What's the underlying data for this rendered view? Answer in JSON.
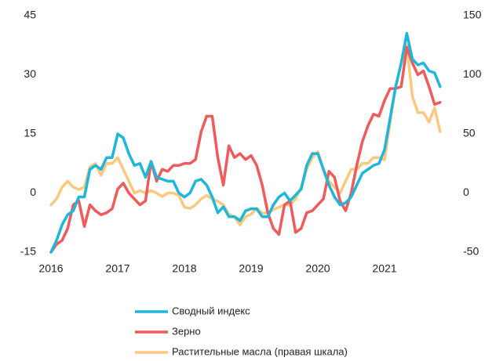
{
  "chart_data": {
    "type": "line",
    "categories": [
      "2016",
      null,
      null,
      null,
      null,
      null,
      null,
      null,
      null,
      null,
      null,
      null,
      "2017",
      null,
      null,
      null,
      null,
      null,
      null,
      null,
      null,
      null,
      null,
      null,
      "2018",
      null,
      null,
      null,
      null,
      null,
      null,
      null,
      null,
      null,
      null,
      null,
      "2019",
      null,
      null,
      null,
      null,
      null,
      null,
      null,
      null,
      null,
      null,
      null,
      "2020",
      null,
      null,
      null,
      null,
      null,
      null,
      null,
      null,
      null,
      null,
      null,
      "2021",
      null,
      null,
      null,
      null,
      null,
      null,
      null,
      null,
      null,
      null
    ],
    "ylim": [
      -15,
      45
    ],
    "yticks": [
      -15,
      0,
      15,
      30,
      45
    ],
    "y2lim": [
      -50,
      150
    ],
    "y2ticks": [
      -50,
      0,
      50,
      100,
      150
    ],
    "series": [
      {
        "name": "Сводный индекс",
        "color": "#1fb6d9",
        "values": [
          -15,
          -12,
          -8,
          -5.5,
          -4.5,
          -1,
          -1,
          6,
          7,
          6,
          9,
          9,
          15,
          14,
          10,
          7,
          7.5,
          4,
          8,
          4,
          3.5,
          3,
          3,
          0,
          -1,
          0,
          3,
          3.5,
          2,
          -1,
          -5,
          -3.5,
          -6,
          -6,
          -7,
          -4.5,
          -4,
          -4,
          -6,
          -6,
          -3,
          -1,
          0,
          -2,
          -0.5,
          1,
          7,
          10,
          10,
          6,
          2,
          -1,
          -3,
          -2.5,
          -1,
          2,
          5,
          6,
          7,
          7.5,
          11,
          19,
          27,
          33,
          40.5,
          34,
          32.5,
          33,
          31,
          30.5,
          27
        ]
      },
      {
        "name": "Зерно",
        "color": "#f05a5a",
        "values": [
          -15,
          -13,
          -12,
          -9,
          -3,
          -2,
          -8.5,
          -3,
          -4.5,
          -5.5,
          -5,
          -4,
          1,
          2.5,
          0,
          -1.5,
          -3,
          -2,
          8,
          3,
          6,
          5.5,
          7,
          7,
          7.5,
          7.5,
          8.5,
          15.5,
          19.5,
          19.5,
          9,
          2,
          12,
          9,
          10,
          8.5,
          9.5,
          7,
          2,
          -5,
          -9,
          -10.5,
          -3,
          -2,
          -10,
          -9,
          -5,
          -4.5,
          -3,
          -1.5,
          5.5,
          4,
          -2,
          -4.5,
          0,
          7,
          13,
          17,
          20,
          19.5,
          23.5,
          26.5,
          26.5,
          27,
          37,
          33,
          30,
          31,
          27,
          22.5,
          23
        ]
      },
      {
        "name": "Растительные масла (правая шкала)",
        "color": "#f9c97f",
        "axis": "y2",
        "values": [
          -10,
          -5,
          5,
          10,
          5,
          3,
          5,
          22,
          25,
          15,
          25,
          25,
          30,
          20,
          10,
          0,
          2,
          0,
          2,
          0,
          -3,
          0,
          0,
          -2,
          -12,
          -13,
          -10,
          -5,
          -2,
          -5,
          -7,
          -10,
          -18,
          -20,
          -27,
          -20,
          -18,
          -13,
          -17,
          -17,
          -14,
          -12,
          -10,
          -10,
          -5,
          5,
          20,
          30,
          35,
          20,
          10,
          5,
          0,
          10,
          20,
          20,
          25,
          25,
          30,
          30,
          28,
          60,
          90,
          110,
          125,
          82,
          68,
          68,
          60,
          72,
          52
        ]
      }
    ]
  }
}
